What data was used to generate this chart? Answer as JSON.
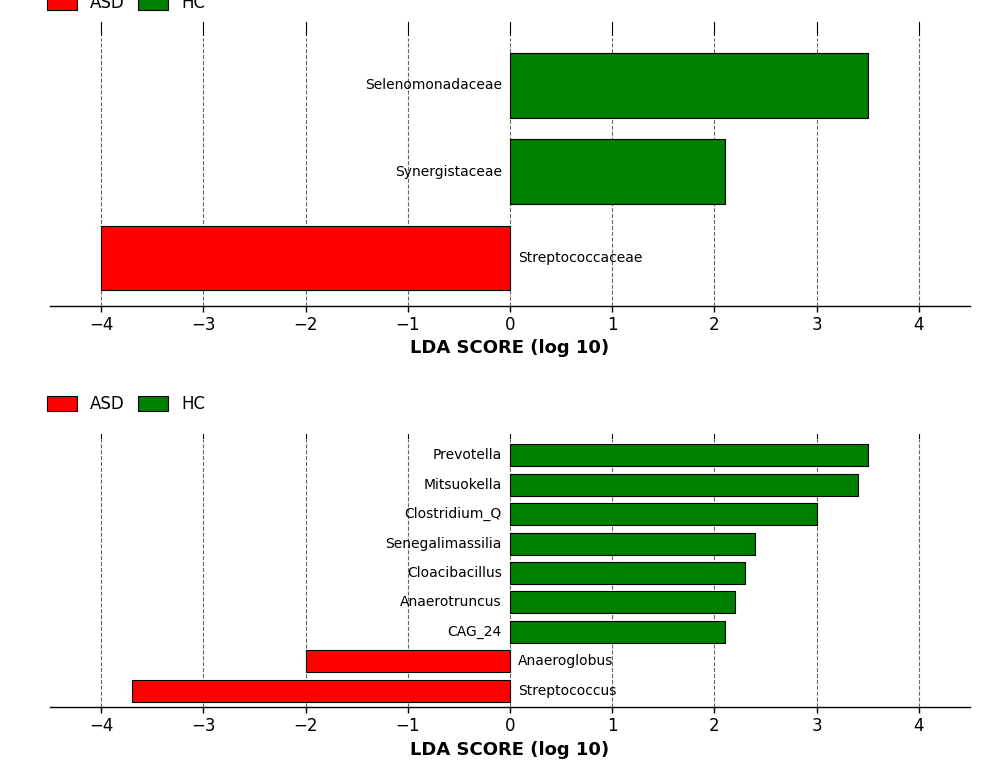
{
  "top_chart": {
    "labels": [
      "Selenomonadaceae",
      "Synergistaceae",
      "Streptococcaceae"
    ],
    "values": [
      3.5,
      2.1,
      -4.0
    ],
    "colors": [
      "#008000",
      "#008000",
      "#ff0000"
    ],
    "xlim": [
      -4.5,
      4.5
    ],
    "xticks": [
      -4,
      -3,
      -2,
      -1,
      0,
      1,
      2,
      3,
      4
    ],
    "xlabel": "LDA SCORE (log 10)"
  },
  "bottom_chart": {
    "labels": [
      "Prevotella",
      "Mitsuokella",
      "Clostridium_Q",
      "Senegalimassilia",
      "Cloacibacillus",
      "Anaerotruncus",
      "CAG_24",
      "Anaeroglobus",
      "Streptococcus"
    ],
    "values": [
      3.5,
      3.4,
      3.0,
      2.4,
      2.3,
      2.2,
      2.1,
      -2.0,
      -3.7
    ],
    "colors": [
      "#008000",
      "#008000",
      "#008000",
      "#008000",
      "#008000",
      "#008000",
      "#008000",
      "#ff0000",
      "#ff0000"
    ],
    "xlim": [
      -4.5,
      4.5
    ],
    "xticks": [
      -4,
      -3,
      -2,
      -1,
      0,
      1,
      2,
      3,
      4
    ],
    "xlabel": "LDA SCORE (log 10)"
  },
  "legend_asd_color": "#ff0000",
  "legend_hc_color": "#008000",
  "legend_asd_label": "ASD",
  "legend_hc_label": "HC",
  "bar_edgecolor": "#000000",
  "bar_linewidth": 0.8,
  "background_color": "#ffffff",
  "grid_color": "#555555",
  "xlabel_fontsize": 13,
  "tick_fontsize": 12,
  "legend_fontsize": 12,
  "label_fontsize": 10,
  "bar_height": 0.75
}
